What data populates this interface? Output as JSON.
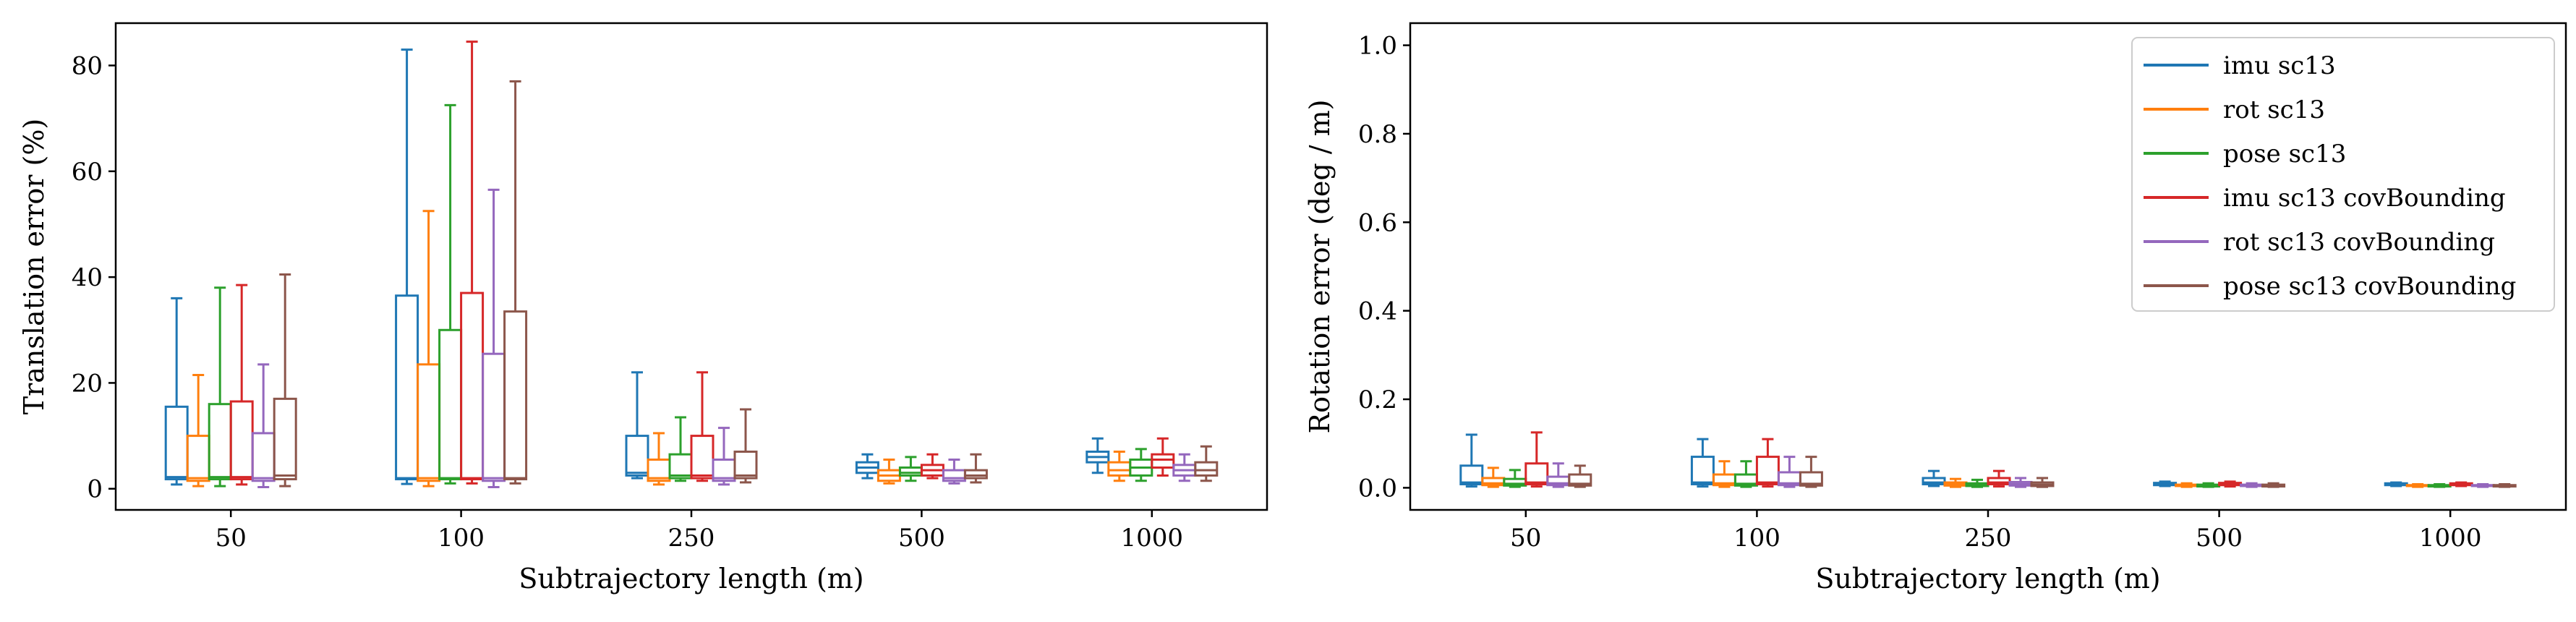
{
  "chart_data": [
    {
      "type": "box",
      "xlabel": "Subtrajectory length (m)",
      "ylabel": "Translation error (%)",
      "ylim": [
        -4,
        88
      ],
      "yticks": [
        0,
        20,
        40,
        60,
        80
      ],
      "grid": false,
      "categories": [
        "50",
        "100",
        "250",
        "500",
        "1000"
      ],
      "series": [
        {
          "name": "imu sc13",
          "color": "#1f77b4",
          "boxes": [
            {
              "whisker_low": 0.8,
              "q1": 1.8,
              "median": 2.2,
              "q3": 15.5,
              "whisker_high": 36.0
            },
            {
              "whisker_low": 0.9,
              "q1": 1.8,
              "median": 2.0,
              "q3": 36.5,
              "whisker_high": 83.0
            },
            {
              "whisker_low": 2.0,
              "q1": 2.5,
              "median": 3.0,
              "q3": 10.0,
              "whisker_high": 22.0
            },
            {
              "whisker_low": 2.0,
              "q1": 3.0,
              "median": 4.0,
              "q3": 5.0,
              "whisker_high": 6.5
            },
            {
              "whisker_low": 3.0,
              "q1": 5.0,
              "median": 6.0,
              "q3": 7.0,
              "whisker_high": 9.5
            }
          ]
        },
        {
          "name": "rot sc13",
          "color": "#ff7f0e",
          "boxes": [
            {
              "whisker_low": 0.5,
              "q1": 1.5,
              "median": 2.0,
              "q3": 10.0,
              "whisker_high": 21.5
            },
            {
              "whisker_low": 0.5,
              "q1": 1.5,
              "median": 2.0,
              "q3": 23.5,
              "whisker_high": 52.5
            },
            {
              "whisker_low": 0.8,
              "q1": 1.5,
              "median": 2.0,
              "q3": 5.5,
              "whisker_high": 10.5
            },
            {
              "whisker_low": 1.0,
              "q1": 1.5,
              "median": 2.5,
              "q3": 3.5,
              "whisker_high": 5.5
            },
            {
              "whisker_low": 1.5,
              "q1": 2.5,
              "median": 3.5,
              "q3": 5.0,
              "whisker_high": 7.0
            }
          ]
        },
        {
          "name": "pose sc13",
          "color": "#2ca02c",
          "boxes": [
            {
              "whisker_low": 0.5,
              "q1": 1.8,
              "median": 2.2,
              "q3": 16.0,
              "whisker_high": 38.0
            },
            {
              "whisker_low": 1.0,
              "q1": 1.8,
              "median": 2.0,
              "q3": 30.0,
              "whisker_high": 72.5
            },
            {
              "whisker_low": 1.5,
              "q1": 2.0,
              "median": 2.5,
              "q3": 6.5,
              "whisker_high": 13.5
            },
            {
              "whisker_low": 1.5,
              "q1": 2.5,
              "median": 3.0,
              "q3": 4.0,
              "whisker_high": 6.0
            },
            {
              "whisker_low": 1.5,
              "q1": 2.5,
              "median": 4.0,
              "q3": 5.5,
              "whisker_high": 7.5
            }
          ]
        },
        {
          "name": "imu sc13 covBounding",
          "color": "#d62728",
          "boxes": [
            {
              "whisker_low": 0.8,
              "q1": 1.8,
              "median": 2.2,
              "q3": 16.5,
              "whisker_high": 38.5
            },
            {
              "whisker_low": 1.0,
              "q1": 1.8,
              "median": 2.0,
              "q3": 37.0,
              "whisker_high": 84.5
            },
            {
              "whisker_low": 1.5,
              "q1": 2.0,
              "median": 2.5,
              "q3": 10.0,
              "whisker_high": 22.0
            },
            {
              "whisker_low": 2.0,
              "q1": 2.5,
              "median": 3.5,
              "q3": 4.5,
              "whisker_high": 6.5
            },
            {
              "whisker_low": 2.5,
              "q1": 4.0,
              "median": 5.5,
              "q3": 6.5,
              "whisker_high": 9.5
            }
          ]
        },
        {
          "name": "rot sc13 covBounding",
          "color": "#9467bd",
          "boxes": [
            {
              "whisker_low": 0.3,
              "q1": 1.5,
              "median": 2.0,
              "q3": 10.5,
              "whisker_high": 23.5
            },
            {
              "whisker_low": 0.3,
              "q1": 1.5,
              "median": 2.0,
              "q3": 25.5,
              "whisker_high": 56.5
            },
            {
              "whisker_low": 0.8,
              "q1": 1.5,
              "median": 2.0,
              "q3": 5.5,
              "whisker_high": 11.5
            },
            {
              "whisker_low": 1.0,
              "q1": 1.5,
              "median": 2.0,
              "q3": 3.5,
              "whisker_high": 5.5
            },
            {
              "whisker_low": 1.5,
              "q1": 2.5,
              "median": 3.5,
              "q3": 4.5,
              "whisker_high": 6.5
            }
          ]
        },
        {
          "name": "pose sc13 covBounding",
          "color": "#8c564b",
          "boxes": [
            {
              "whisker_low": 0.5,
              "q1": 1.8,
              "median": 2.5,
              "q3": 17.0,
              "whisker_high": 40.5
            },
            {
              "whisker_low": 1.0,
              "q1": 1.8,
              "median": 2.0,
              "q3": 33.5,
              "whisker_high": 77.0
            },
            {
              "whisker_low": 1.2,
              "q1": 2.0,
              "median": 2.5,
              "q3": 7.0,
              "whisker_high": 15.0
            },
            {
              "whisker_low": 1.2,
              "q1": 2.0,
              "median": 2.5,
              "q3": 3.5,
              "whisker_high": 6.5
            },
            {
              "whisker_low": 1.5,
              "q1": 2.5,
              "median": 3.5,
              "q3": 5.0,
              "whisker_high": 8.0
            }
          ]
        }
      ]
    },
    {
      "type": "box",
      "xlabel": "Subtrajectory length (m)",
      "ylabel": "Rotation error (deg / m)",
      "ylim": [
        -0.05,
        1.05
      ],
      "yticks": [
        0.0,
        0.2,
        0.4,
        0.6,
        0.8,
        1.0
      ],
      "ytick_labels": [
        "0.0",
        "0.2",
        "0.4",
        "0.6",
        "0.8",
        "1.0"
      ],
      "grid": false,
      "legend_position": "top-right",
      "categories": [
        "50",
        "100",
        "250",
        "500",
        "1000"
      ],
      "series": [
        {
          "name": "imu sc13",
          "color": "#1f77b4",
          "boxes": [
            {
              "whisker_low": 0.003,
              "q1": 0.008,
              "median": 0.012,
              "q3": 0.05,
              "whisker_high": 0.12
            },
            {
              "whisker_low": 0.003,
              "q1": 0.008,
              "median": 0.012,
              "q3": 0.07,
              "whisker_high": 0.11
            },
            {
              "whisker_low": 0.004,
              "q1": 0.008,
              "median": 0.012,
              "q3": 0.022,
              "whisker_high": 0.038
            },
            {
              "whisker_low": 0.004,
              "q1": 0.006,
              "median": 0.008,
              "q3": 0.011,
              "whisker_high": 0.014
            },
            {
              "whisker_low": 0.004,
              "q1": 0.006,
              "median": 0.008,
              "q3": 0.01,
              "whisker_high": 0.012
            }
          ]
        },
        {
          "name": "rot sc13",
          "color": "#ff7f0e",
          "boxes": [
            {
              "whisker_low": 0.002,
              "q1": 0.006,
              "median": 0.01,
              "q3": 0.022,
              "whisker_high": 0.045
            },
            {
              "whisker_low": 0.002,
              "q1": 0.006,
              "median": 0.01,
              "q3": 0.03,
              "whisker_high": 0.06
            },
            {
              "whisker_low": 0.002,
              "q1": 0.005,
              "median": 0.008,
              "q3": 0.012,
              "whisker_high": 0.02
            },
            {
              "whisker_low": 0.002,
              "q1": 0.004,
              "median": 0.005,
              "q3": 0.007,
              "whisker_high": 0.01
            },
            {
              "whisker_low": 0.002,
              "q1": 0.004,
              "median": 0.005,
              "q3": 0.006,
              "whisker_high": 0.008
            }
          ]
        },
        {
          "name": "pose sc13",
          "color": "#2ca02c",
          "boxes": [
            {
              "whisker_low": 0.002,
              "q1": 0.005,
              "median": 0.009,
              "q3": 0.02,
              "whisker_high": 0.04
            },
            {
              "whisker_low": 0.002,
              "q1": 0.005,
              "median": 0.009,
              "q3": 0.03,
              "whisker_high": 0.06
            },
            {
              "whisker_low": 0.002,
              "q1": 0.004,
              "median": 0.007,
              "q3": 0.01,
              "whisker_high": 0.018
            },
            {
              "whisker_low": 0.002,
              "q1": 0.003,
              "median": 0.005,
              "q3": 0.007,
              "whisker_high": 0.01
            },
            {
              "whisker_low": 0.002,
              "q1": 0.003,
              "median": 0.005,
              "q3": 0.006,
              "whisker_high": 0.008
            }
          ]
        },
        {
          "name": "imu sc13 covBounding",
          "color": "#d62728",
          "boxes": [
            {
              "whisker_low": 0.003,
              "q1": 0.008,
              "median": 0.012,
              "q3": 0.055,
              "whisker_high": 0.125
            },
            {
              "whisker_low": 0.003,
              "q1": 0.008,
              "median": 0.012,
              "q3": 0.07,
              "whisker_high": 0.11
            },
            {
              "whisker_low": 0.003,
              "q1": 0.008,
              "median": 0.012,
              "q3": 0.022,
              "whisker_high": 0.038
            },
            {
              "whisker_low": 0.003,
              "q1": 0.006,
              "median": 0.008,
              "q3": 0.011,
              "whisker_high": 0.014
            },
            {
              "whisker_low": 0.004,
              "q1": 0.006,
              "median": 0.008,
              "q3": 0.01,
              "whisker_high": 0.012
            }
          ]
        },
        {
          "name": "rot sc13 covBounding",
          "color": "#9467bd",
          "boxes": [
            {
              "whisker_low": 0.002,
              "q1": 0.006,
              "median": 0.01,
              "q3": 0.025,
              "whisker_high": 0.055
            },
            {
              "whisker_low": 0.002,
              "q1": 0.006,
              "median": 0.01,
              "q3": 0.035,
              "whisker_high": 0.07
            },
            {
              "whisker_low": 0.002,
              "q1": 0.005,
              "median": 0.008,
              "q3": 0.013,
              "whisker_high": 0.022
            },
            {
              "whisker_low": 0.002,
              "q1": 0.004,
              "median": 0.005,
              "q3": 0.007,
              "whisker_high": 0.01
            },
            {
              "whisker_low": 0.002,
              "q1": 0.004,
              "median": 0.005,
              "q3": 0.006,
              "whisker_high": 0.008
            }
          ]
        },
        {
          "name": "pose sc13 covBounding",
          "color": "#8c564b",
          "boxes": [
            {
              "whisker_low": 0.002,
              "q1": 0.005,
              "median": 0.009,
              "q3": 0.03,
              "whisker_high": 0.05
            },
            {
              "whisker_low": 0.002,
              "q1": 0.005,
              "median": 0.009,
              "q3": 0.035,
              "whisker_high": 0.07
            },
            {
              "whisker_low": 0.002,
              "q1": 0.004,
              "median": 0.007,
              "q3": 0.012,
              "whisker_high": 0.022
            },
            {
              "whisker_low": 0.002,
              "q1": 0.003,
              "median": 0.005,
              "q3": 0.007,
              "whisker_high": 0.01
            },
            {
              "whisker_low": 0.002,
              "q1": 0.003,
              "median": 0.005,
              "q3": 0.006,
              "whisker_high": 0.008
            }
          ]
        }
      ]
    }
  ]
}
